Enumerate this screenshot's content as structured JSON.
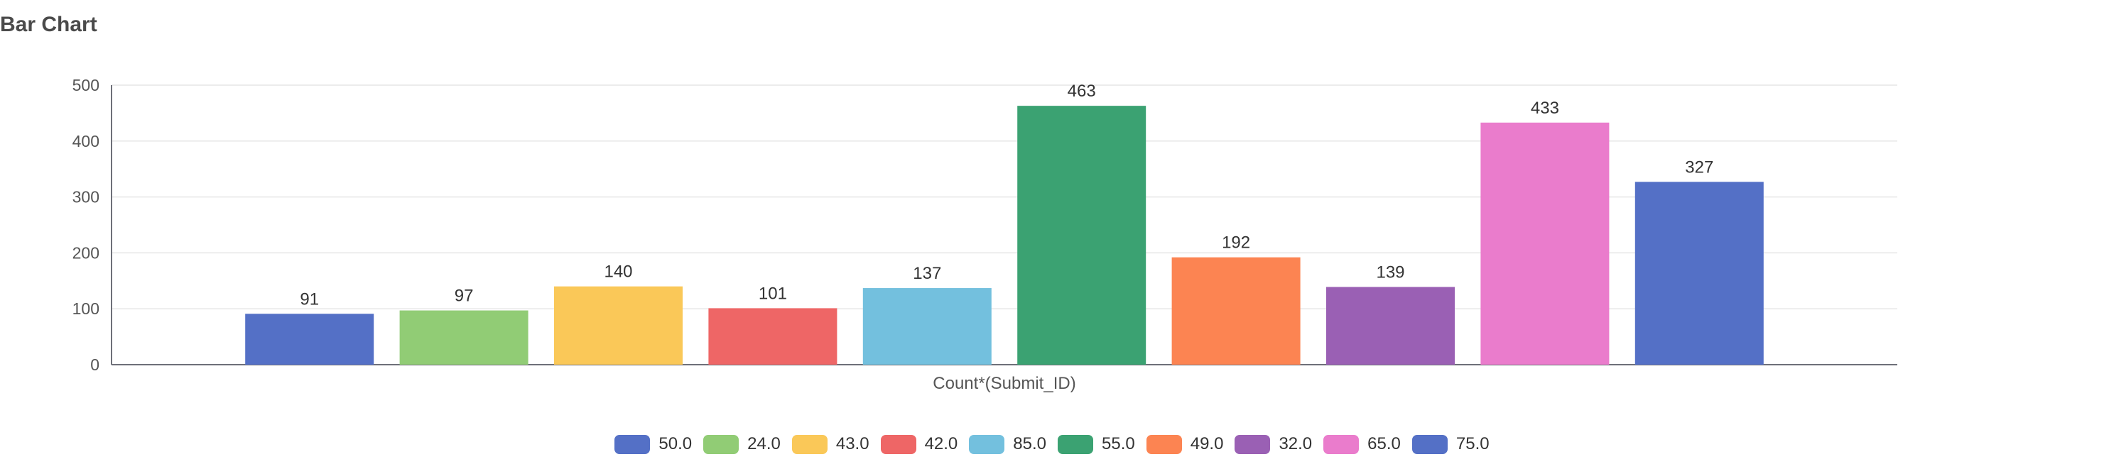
{
  "title": "Bar Chart",
  "chart_data": {
    "type": "bar",
    "title": "Bar Chart",
    "xlabel": "Count*(Submit_ID)",
    "ylabel": "",
    "ylim": [
      0,
      500
    ],
    "yticks": [
      "0",
      "100",
      "200",
      "300",
      "400",
      "500"
    ],
    "grid": true,
    "legend_position": "bottom",
    "series": [
      {
        "name": "50.0",
        "value": 91,
        "color": "#5470c6"
      },
      {
        "name": "24.0",
        "value": 97,
        "color": "#91cc75"
      },
      {
        "name": "43.0",
        "value": 140,
        "color": "#fac858"
      },
      {
        "name": "42.0",
        "value": 101,
        "color": "#ee6666"
      },
      {
        "name": "85.0",
        "value": 137,
        "color": "#73c0de"
      },
      {
        "name": "55.0",
        "value": 463,
        "color": "#3ba272"
      },
      {
        "name": "49.0",
        "value": 192,
        "color": "#fc8452"
      },
      {
        "name": "32.0",
        "value": 139,
        "color": "#9a60b4"
      },
      {
        "name": "65.0",
        "value": 433,
        "color": "#ea7ccc"
      },
      {
        "name": "75.0",
        "value": 327,
        "color": "#5470c6"
      }
    ]
  }
}
